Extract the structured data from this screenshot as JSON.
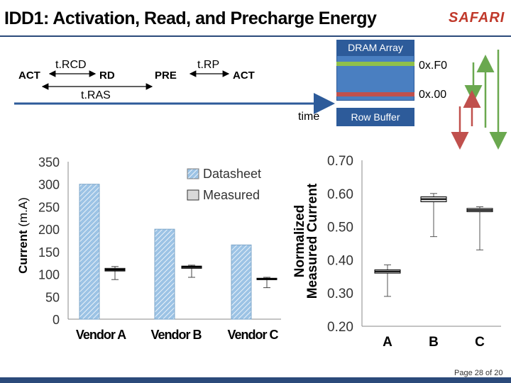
{
  "header": {
    "title": "IDD1: Activation, Read, and Precharge Energy",
    "logo": "SAFARI"
  },
  "timeline": {
    "act1": "ACT",
    "trcd": "t.RCD",
    "rd": "RD",
    "pre": "PRE",
    "trp": "t.RP",
    "act2": "ACT",
    "tras": "t.RAS",
    "time": "time"
  },
  "dram": {
    "array_label": "DRAM Array",
    "row_buffer_label": "Row Buffer",
    "row_top": "0x.F0",
    "row_bottom": "0x.00",
    "colors": {
      "array": "#4a7fc1",
      "label_bg": "#2d5b9a",
      "row_top": "#8fc04a",
      "row_bottom": "#c0504d"
    }
  },
  "chart_data": [
    {
      "type": "bar",
      "ylabel": "Current (m.A)",
      "ylim": [
        0,
        350
      ],
      "yticks": [
        "350",
        "300",
        "250",
        "200",
        "150",
        "100",
        "50",
        "0"
      ],
      "categories": [
        "Vendor A",
        "Vendor B",
        "Vendor C"
      ],
      "series": [
        {
          "name": "Datasheet",
          "values": [
            300,
            200,
            165
          ],
          "color": "#7fb2dd"
        },
        {
          "name": "Measured",
          "boxes": [
            {
              "min": 88,
              "q1": 107,
              "median": 110,
              "q3": 113,
              "max": 117
            },
            {
              "min": 93,
              "q1": 113,
              "median": 116,
              "q3": 118,
              "max": 120
            },
            {
              "min": 70,
              "q1": 88,
              "median": 89,
              "q3": 91,
              "max": 93
            }
          ],
          "color": "#d9d9d9"
        }
      ],
      "legend": "top-right"
    },
    {
      "type": "box",
      "ylabel": "Normalized Measured Current",
      "ylim": [
        0.2,
        0.7
      ],
      "yticks": [
        "0.70",
        "0.60",
        "0.50",
        "0.40",
        "0.30",
        "0.20"
      ],
      "categories": [
        "A",
        "B",
        "C"
      ],
      "boxes": [
        {
          "min": 0.29,
          "q1": 0.36,
          "median": 0.365,
          "q3": 0.37,
          "max": 0.385
        },
        {
          "min": 0.47,
          "q1": 0.575,
          "median": 0.583,
          "q3": 0.59,
          "max": 0.6
        },
        {
          "min": 0.43,
          "q1": 0.545,
          "median": 0.55,
          "q3": 0.555,
          "max": 0.56
        }
      ]
    }
  ],
  "footer": {
    "page": "Page 28 of 20"
  }
}
